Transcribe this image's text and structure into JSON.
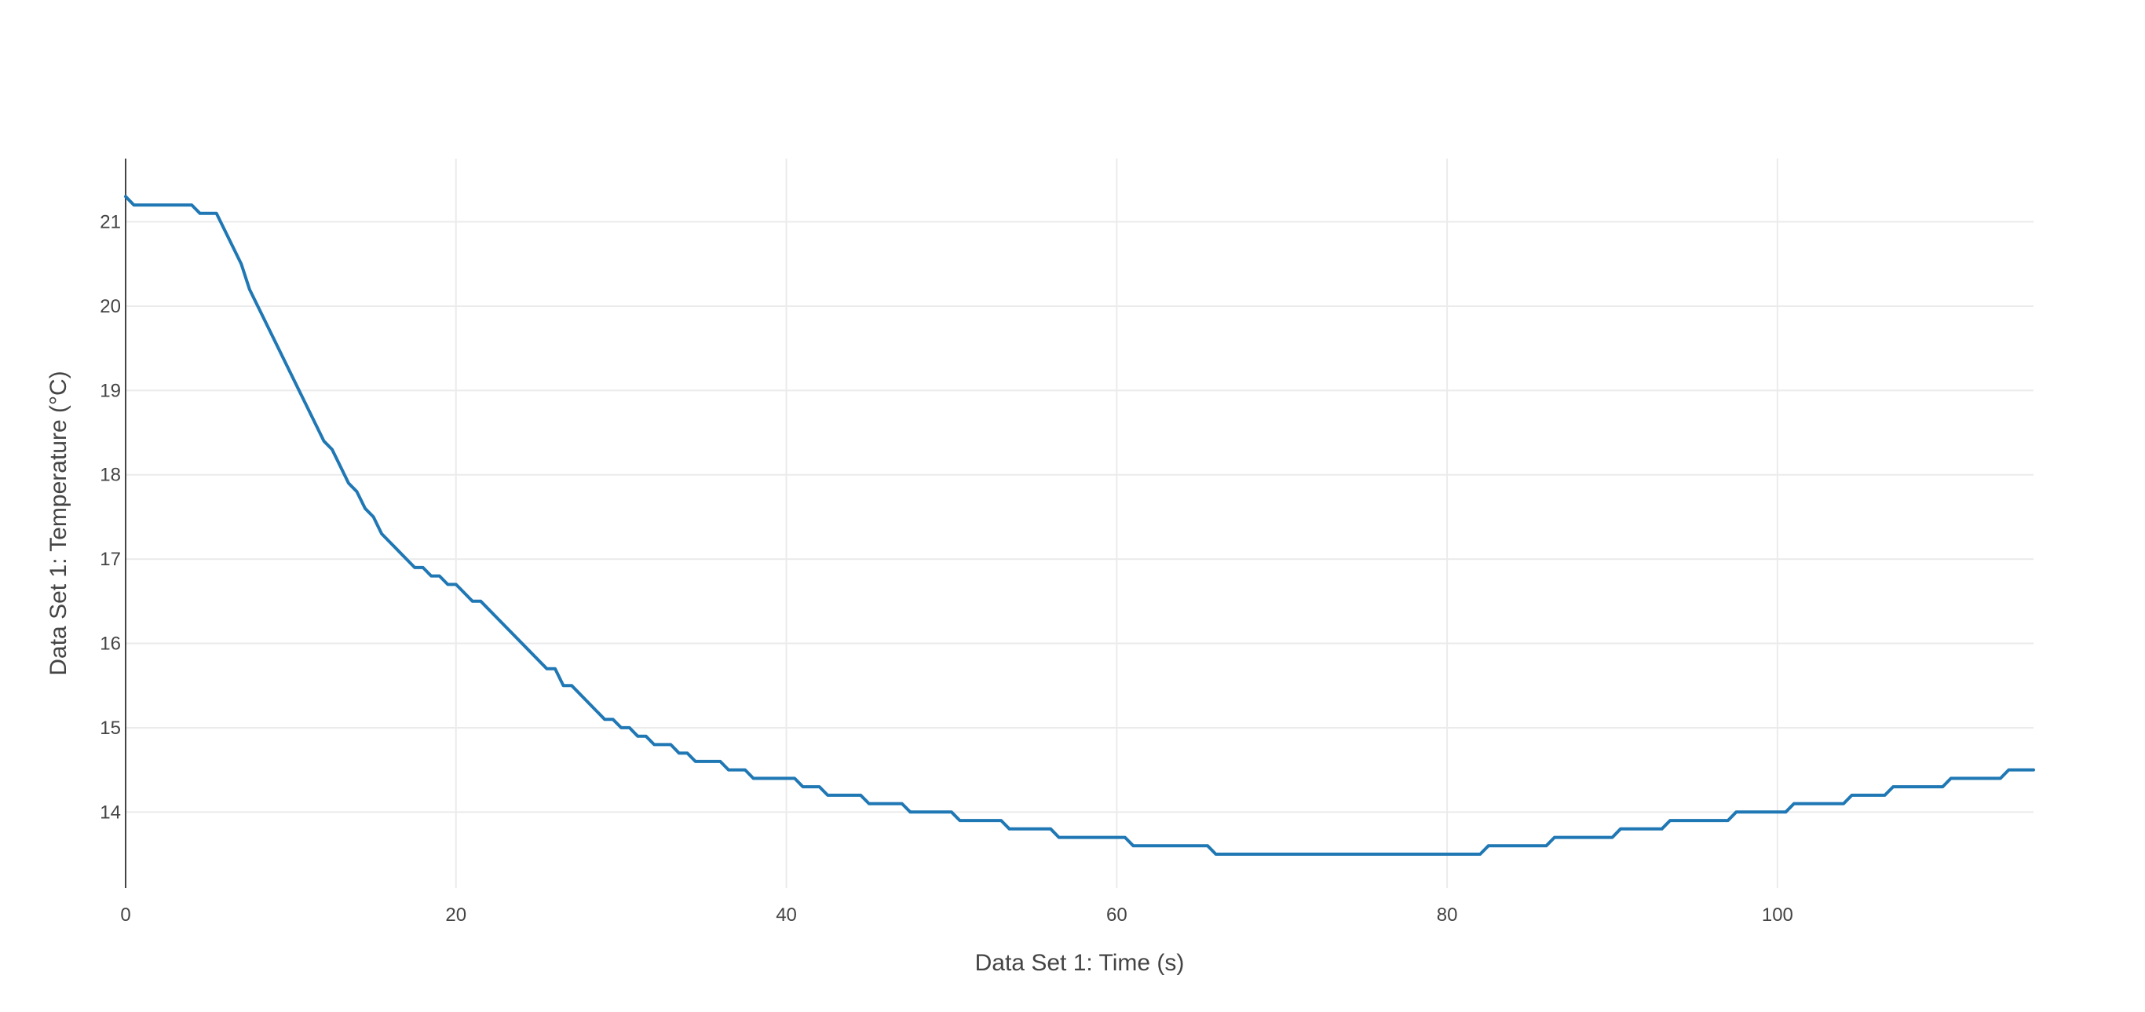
{
  "chart_data": {
    "type": "line",
    "title": "",
    "xlabel": "Data Set 1: Time (s)",
    "ylabel": "Data Set 1: Temperature (°C)",
    "xlim": [
      0,
      115.5
    ],
    "ylim": [
      13.1,
      21.75
    ],
    "xticks": [
      0,
      20,
      40,
      60,
      80,
      100
    ],
    "yticks": [
      14,
      15,
      16,
      17,
      18,
      19,
      20,
      21
    ],
    "grid": true,
    "legend": "none",
    "series": [
      {
        "color": "#1f77b4",
        "x": [
          0,
          0.5,
          4,
          4.5,
          5.5,
          7,
          7.5,
          12,
          12.5,
          13.5,
          14,
          14.5,
          15,
          15.5,
          17.5,
          18,
          18.5,
          19,
          19.5,
          20,
          21,
          21.5,
          25.5,
          26,
          26.5,
          27,
          29,
          29.5,
          30,
          30.5,
          31,
          31.5,
          32,
          33,
          33.5,
          34,
          34.5,
          36,
          36.5,
          37.5,
          38,
          40.5,
          41,
          42,
          42.5,
          44.5,
          45,
          47,
          47.5,
          50,
          50.5,
          53,
          53.5,
          56,
          56.5,
          60.5,
          61,
          65.5,
          66,
          82,
          82.5,
          86,
          86.5,
          90,
          90.5,
          93,
          93.5,
          97,
          97.5,
          100.5,
          101,
          104,
          104.5,
          106.5,
          107,
          110,
          110.5,
          113.5,
          114,
          115.5
        ],
        "y": [
          21.3,
          21.2,
          21.2,
          21.1,
          21.1,
          20.5,
          20.2,
          18.4,
          18.3,
          17.9,
          17.8,
          17.6,
          17.5,
          17.3,
          16.9,
          16.9,
          16.8,
          16.8,
          16.7,
          16.7,
          16.5,
          16.5,
          15.7,
          15.7,
          15.5,
          15.5,
          15.1,
          15.1,
          15.0,
          15.0,
          14.9,
          14.9,
          14.8,
          14.8,
          14.7,
          14.7,
          14.6,
          14.6,
          14.5,
          14.5,
          14.4,
          14.4,
          14.3,
          14.3,
          14.2,
          14.2,
          14.1,
          14.1,
          14.0,
          14.0,
          13.9,
          13.9,
          13.8,
          13.8,
          13.7,
          13.7,
          13.6,
          13.6,
          13.5,
          13.5,
          13.6,
          13.6,
          13.7,
          13.7,
          13.8,
          13.8,
          13.9,
          13.9,
          14.0,
          14.0,
          14.1,
          14.1,
          14.2,
          14.2,
          14.3,
          14.3,
          14.4,
          14.4,
          14.5,
          14.5
        ]
      }
    ]
  }
}
